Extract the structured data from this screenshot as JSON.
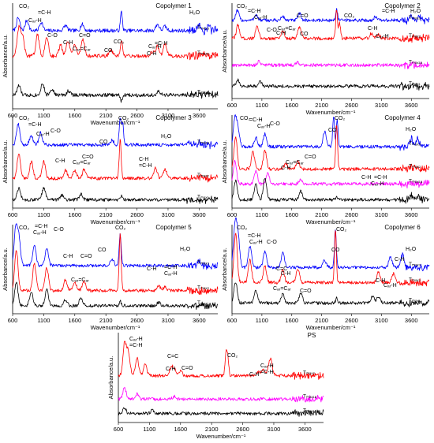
{
  "chart_data": [
    {
      "type": "line",
      "title": "Copolymer 1",
      "xlabel": "Wavenumber/cm⁻¹",
      "ylabel": "Absorbance/a.u.",
      "xlim": [
        600,
        3900
      ],
      "ylim": [
        0,
        10
      ],
      "xticks": [
        "600",
        "1100",
        "1600",
        "2100",
        "2600",
        "3100",
        "3600"
      ],
      "grid": false,
      "series": [
        {
          "name": "Tₘₐₓ₃",
          "color": "#0000ff",
          "baseline": 7.4,
          "peaks": [
            [
              690,
              1.2
            ],
            [
              830,
              1.0
            ],
            [
              1060,
              0.8
            ],
            [
              1450,
              0.5
            ],
            [
              1720,
              0.6
            ],
            [
              2350,
              1.8
            ],
            [
              2930,
              0.6
            ],
            [
              3050,
              0.4
            ],
            [
              3600,
              0.6
            ],
            [
              3750,
              0.4
            ]
          ]
        },
        {
          "name": "Tₘₐₓ₂",
          "color": "#ff0000",
          "baseline": 5.0,
          "peaks": [
            [
              700,
              2.6
            ],
            [
              760,
              1.8
            ],
            [
              1000,
              2.0
            ],
            [
              1150,
              1.8
            ],
            [
              1370,
              1.0
            ],
            [
              1490,
              1.4
            ],
            [
              1600,
              1.2
            ],
            [
              1730,
              1.6
            ],
            [
              2180,
              0.6
            ],
            [
              2350,
              1.5
            ],
            [
              2850,
              0.4
            ],
            [
              2930,
              0.9
            ],
            [
              3050,
              1.2
            ]
          ]
        },
        {
          "name": "Tₘₐₓ₁",
          "color": "#000000",
          "baseline": 1.3,
          "peaks": [
            [
              700,
              0.9
            ],
            [
              1080,
              1.1
            ],
            [
              1230,
              0.6
            ],
            [
              1500,
              0.4
            ],
            [
              2350,
              -0.6
            ],
            [
              2950,
              0.3
            ]
          ]
        }
      ],
      "annotations": [
        "CO₂",
        "=C-H",
        "Cₐᵣ-H",
        "C-O",
        "C-H",
        "C=O",
        "Cₐᵣ=Cₐᵣ",
        "CO",
        "CO₂",
        "Cₐᵣ-H",
        "=C-H",
        "C-H",
        "H₂O"
      ]
    },
    {
      "type": "line",
      "title": "Copolymer 2",
      "xlabel": "Wavenumber/cm⁻¹",
      "ylabel": "Absorbance/a.u.",
      "xlim": [
        600,
        3900
      ],
      "ylim": [
        0,
        10
      ],
      "xticks": [
        "600",
        "1100",
        "1600",
        "2100",
        "2600",
        "3100",
        "3600"
      ],
      "grid": false,
      "series": [
        {
          "name": "Tₘₐₓ₃",
          "color": "#0000ff",
          "baseline": 8.2,
          "peaks": [
            [
              690,
              1.0
            ],
            [
              1000,
              0.6
            ],
            [
              1450,
              0.4
            ],
            [
              1730,
              0.7
            ],
            [
              2350,
              1.2
            ],
            [
              3000,
              0.4
            ],
            [
              3600,
              0.5
            ],
            [
              3750,
              0.4
            ]
          ]
        },
        {
          "name": "Tₘₐₓ₂",
          "color": "#ff0000",
          "baseline": 6.3,
          "peaks": [
            [
              700,
              1.4
            ],
            [
              1020,
              1.2
            ],
            [
              1450,
              0.8
            ],
            [
              1730,
              1.2
            ],
            [
              2350,
              3.0
            ],
            [
              2400,
              1.6
            ],
            [
              2930,
              0.5
            ],
            [
              3050,
              0.4
            ]
          ]
        },
        {
          "name": "Tₘₐₓ₁ₐ",
          "color": "#ff00ff",
          "baseline": 3.5,
          "peaks": [
            [
              1050,
              0.4
            ],
            [
              1700,
              0.3
            ]
          ]
        },
        {
          "name": "Tₘₐₓ₁",
          "color": "#000000",
          "baseline": 1.3,
          "peaks": [
            [
              700,
              0.6
            ],
            [
              1070,
              0.5
            ]
          ]
        }
      ],
      "annotations": [
        "CO₂",
        "=C-H",
        "Cₐᵣ-H",
        "C-O",
        "C-H",
        "C=O",
        "Cₐᵣ=Cₐᵣ",
        "CO",
        "CO₂",
        "=C-H",
        "C-H",
        "Cₐᵣ-H",
        "H₂O"
      ]
    },
    {
      "type": "line",
      "title": "Copolymer 3",
      "xlabel": "Wavenumber/cm⁻¹",
      "ylabel": "Absorbance/a.u.",
      "xlim": [
        600,
        3900
      ],
      "ylim": [
        0,
        10
      ],
      "xticks": [
        "600",
        "1100",
        "1600",
        "2100",
        "2600",
        "3100",
        "3600"
      ],
      "grid": false,
      "series": [
        {
          "name": "Tₘₐₓ₃",
          "color": "#0000ff",
          "baseline": 6.8,
          "peaks": [
            [
              690,
              2.2
            ],
            [
              900,
              1.0
            ],
            [
              1050,
              1.3
            ],
            [
              2200,
              0.5
            ],
            [
              2330,
              2.8
            ],
            [
              2370,
              2.4
            ],
            [
              3600,
              0.3
            ]
          ]
        },
        {
          "name": "Tₘₐₓ₂",
          "color": "#ff0000",
          "baseline": 3.2,
          "peaks": [
            [
              700,
              2.6
            ],
            [
              900,
              1.8
            ],
            [
              1100,
              1.8
            ],
            [
              1450,
              0.9
            ],
            [
              1600,
              0.8
            ],
            [
              1750,
              1.0
            ],
            [
              2330,
              4.2
            ],
            [
              2900,
              1.1
            ],
            [
              3050,
              1.0
            ]
          ]
        },
        {
          "name": "Tₘₐₓ₁",
          "color": "#000000",
          "baseline": 0.9,
          "peaks": [
            [
              700,
              1.2
            ],
            [
              1100,
              1.3
            ],
            [
              1400,
              0.5
            ],
            [
              1700,
              0.6
            ],
            [
              2350,
              0.4
            ]
          ]
        }
      ],
      "annotations": [
        "CO₂",
        "=C-H",
        "Cₐᵣ-H",
        "C-O",
        "C-H",
        "C=O",
        "Cₐᵣ=Cₐᵣ",
        "CO",
        "CO₂",
        "C-H",
        "=C-H",
        "H₂O"
      ]
    },
    {
      "type": "line",
      "title": "Copolymer 4",
      "xlabel": "Wavenumber/cm⁻¹",
      "ylabel": "Absorbance/a.u.",
      "xlim": [
        600,
        3900
      ],
      "ylim": [
        0,
        10
      ],
      "xticks": [
        "600",
        "1100",
        "1600",
        "2100",
        "2600",
        "3100",
        "3600"
      ],
      "grid": false,
      "series": [
        {
          "name": "Tₘₐₓ₃",
          "color": "#0000ff",
          "baseline": 6.6,
          "peaks": [
            [
              650,
              3.0
            ],
            [
              700,
              1.8
            ],
            [
              1000,
              1.0
            ],
            [
              1150,
              1.4
            ],
            [
              2150,
              1.6
            ],
            [
              2300,
              3.2
            ],
            [
              2360,
              2.8
            ],
            [
              3600,
              1.0
            ],
            [
              3700,
              0.8
            ]
          ]
        },
        {
          "name": "Tₘₐₓ₂",
          "color": "#ff0000",
          "baseline": 4.2,
          "peaks": [
            [
              660,
              3.4
            ],
            [
              950,
              1.8
            ],
            [
              1150,
              2.0
            ],
            [
              1500,
              0.6
            ],
            [
              1700,
              0.8
            ],
            [
              2350,
              4.8
            ],
            [
              3600,
              0.3
            ]
          ]
        },
        {
          "name": "Tₘₐₓ₁ₐ",
          "color": "#ff00ff",
          "baseline": 2.6,
          "peaks": [
            [
              650,
              2.4
            ],
            [
              1000,
              1.4
            ],
            [
              1200,
              1.2
            ],
            [
              1750,
              0.5
            ]
          ]
        },
        {
          "name": "Tₘₐₓ₁",
          "color": "#000000",
          "baseline": 0.9,
          "peaks": [
            [
              660,
              2.0
            ],
            [
              1000,
              1.6
            ],
            [
              1150,
              2.4
            ],
            [
              1750,
              0.9
            ],
            [
              2350,
              0.4
            ],
            [
              3600,
              0.5
            ],
            [
              3700,
              0.4
            ]
          ]
        }
      ],
      "annotations": [
        "CO₂",
        "=C-H",
        "Cₐᵣ-H",
        "C-O",
        "C-H",
        "C=O",
        "Cₐᵣ=Cₐᵣ",
        "CO",
        "CO₂",
        "C-H",
        "Cₐᵣ-H",
        "=C-H",
        "H₂O"
      ]
    },
    {
      "type": "line",
      "title": "Copolymer 5",
      "xlabel": "Wavenumber/cm⁻¹",
      "ylabel": "Absorbance/a.u.",
      "xlim": [
        600,
        3900
      ],
      "ylim": [
        0,
        10
      ],
      "xticks": [
        "600",
        "1100",
        "1600",
        "2100",
        "2600",
        "3100",
        "3600"
      ],
      "grid": false,
      "series": [
        {
          "name": "Tₘₐₓ₃",
          "color": "#0000ff",
          "baseline": 5.4,
          "peaks": [
            [
              650,
              4.0
            ],
            [
              700,
              3.0
            ],
            [
              950,
              2.2
            ],
            [
              1150,
              2.0
            ],
            [
              2200,
              0.7
            ],
            [
              2330,
              3.6
            ],
            [
              3600,
              0.4
            ]
          ]
        },
        {
          "name": "Tₘₐₓ₂",
          "color": "#ff0000",
          "baseline": 2.6,
          "peaks": [
            [
              660,
              4.6
            ],
            [
              950,
              3.0
            ],
            [
              1150,
              2.6
            ],
            [
              1450,
              1.2
            ],
            [
              1600,
              0.9
            ],
            [
              1750,
              1.0
            ],
            [
              2330,
              6.4
            ],
            [
              2950,
              0.5
            ],
            [
              3050,
              0.4
            ]
          ]
        },
        {
          "name": "Tₘₐₓ₁",
          "color": "#000000",
          "baseline": 0.9,
          "peaks": [
            [
              660,
              2.6
            ],
            [
              900,
              1.6
            ],
            [
              1150,
              1.8
            ],
            [
              1450,
              0.7
            ],
            [
              1700,
              0.9
            ],
            [
              2330,
              0.5
            ],
            [
              2950,
              0.4
            ]
          ]
        }
      ],
      "annotations": [
        "CO₂",
        "=C-H",
        "Cₐᵣ-H",
        "C-O",
        "C-H",
        "C=O",
        "Cₐᵣ=Cₐᵣ",
        "CO",
        "CO₂",
        "C-H",
        "=C-H",
        "Cₐᵣ-H",
        "H₂O"
      ]
    },
    {
      "type": "line",
      "title": "Copolymer 6",
      "xlabel": "Wavenumber/cm⁻¹",
      "ylabel": "Absorbance/a.u.",
      "xlim": [
        600,
        3900
      ],
      "ylim": [
        0,
        10
      ],
      "xticks": [
        "600",
        "1100",
        "1600",
        "2100",
        "2600",
        "3100",
        "3600"
      ],
      "grid": false,
      "series": [
        {
          "name": "Tₘₐₓ₃",
          "color": "#0000ff",
          "baseline": 5.2,
          "peaks": [
            [
              650,
              4.6
            ],
            [
              700,
              3.6
            ],
            [
              900,
              2.4
            ],
            [
              1150,
              1.8
            ],
            [
              1450,
              1.6
            ],
            [
              2150,
              0.8
            ],
            [
              2330,
              4.4
            ],
            [
              3250,
              1.2
            ],
            [
              3450,
              1.4
            ]
          ]
        },
        {
          "name": "Tₘₐₓ₂",
          "color": "#ff0000",
          "baseline": 3.5,
          "peaks": [
            [
              660,
              5.6
            ],
            [
              900,
              2.6
            ],
            [
              1150,
              1.8
            ],
            [
              1450,
              1.4
            ],
            [
              1700,
              1.6
            ],
            [
              2330,
              6.0
            ],
            [
              3050,
              1.2
            ],
            [
              3300,
              1.0
            ]
          ]
        },
        {
          "name": "Tₘₐₓ₁",
          "color": "#000000",
          "baseline": 1.2,
          "peaks": [
            [
              660,
              2.4
            ],
            [
              1000,
              1.4
            ],
            [
              1450,
              1.0
            ],
            [
              1750,
              1.2
            ],
            [
              2350,
              0.6
            ],
            [
              2950,
              0.8
            ],
            [
              3050,
              0.7
            ]
          ]
        }
      ],
      "annotations": [
        "CO₂",
        "=C-H",
        "Cₐᵣ-H",
        "C-O",
        "C-H",
        "C=C",
        "Cₐᵣ=Cₐᵣ",
        "C=O",
        "CO",
        "CO₂",
        "C-H",
        "Cₐᵣ-H",
        "C-H",
        "H₂O"
      ]
    },
    {
      "type": "line",
      "title": "PS",
      "xlabel": "Wavenumber/cm⁻¹",
      "ylabel": "Absorbance/a.u.",
      "xlim": [
        600,
        3900
      ],
      "ylim": [
        0,
        10
      ],
      "xticks": [
        "600",
        "1100",
        "1600",
        "2100",
        "2600",
        "3100",
        "3600"
      ],
      "grid": false,
      "series": [
        {
          "name": "Tₘₐₓ₂",
          "color": "#ff0000",
          "baseline": 5.2,
          "peaks": [
            [
              700,
              3.6
            ],
            [
              760,
              2.6
            ],
            [
              900,
              2.0
            ],
            [
              1030,
              1.2
            ],
            [
              1450,
              0.9
            ],
            [
              1500,
              0.7
            ],
            [
              1600,
              0.6
            ],
            [
              2330,
              2.4
            ],
            [
              2360,
              2.0
            ],
            [
              2850,
              0.4
            ],
            [
              2930,
              0.7
            ],
            [
              3030,
              1.2
            ],
            [
              3060,
              1.0
            ]
          ]
        },
        {
          "name": "Tₘₐₓ₁ₐ",
          "color": "#ff00ff",
          "baseline": 2.6,
          "peaks": [
            [
              700,
              1.2
            ],
            [
              900,
              0.6
            ],
            [
              1500,
              0.3
            ]
          ]
        },
        {
          "name": "Tₘₐₓ₁",
          "color": "#000000",
          "baseline": 1.0,
          "peaks": [
            [
              700,
              0.6
            ],
            [
              1150,
              0.4
            ]
          ]
        }
      ],
      "annotations": [
        "Cₐᵣ-H",
        "=C-H",
        "C=C",
        "C-H",
        "C=O",
        "CO₂",
        "C-H",
        "Cₐᵣ-H",
        "=C-H"
      ]
    }
  ]
}
